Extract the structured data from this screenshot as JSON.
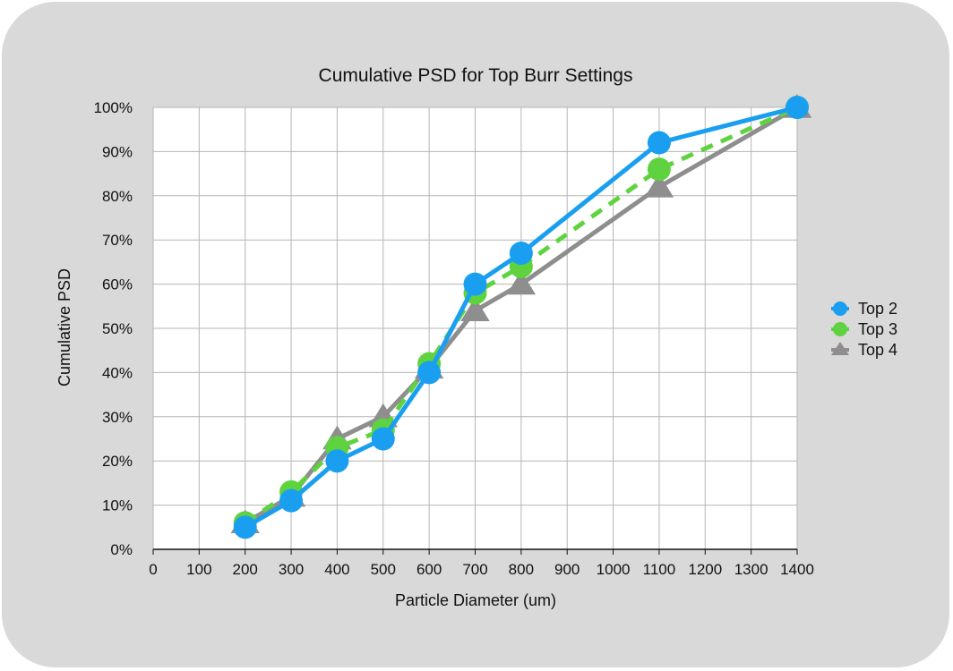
{
  "chart_data": {
    "type": "line",
    "title": "Cumulative PSD for Top Burr Settings",
    "xlabel": "Particle Diameter (um)",
    "ylabel": "Cumulative PSD",
    "xlim": [
      0,
      1400
    ],
    "ylim": [
      0,
      1
    ],
    "x_ticks": [
      0,
      100,
      200,
      300,
      400,
      500,
      600,
      700,
      800,
      900,
      1000,
      1100,
      1200,
      1300,
      1400
    ],
    "y_ticks": [
      0,
      0.1,
      0.2,
      0.3,
      0.4,
      0.5,
      0.6,
      0.7,
      0.8,
      0.9,
      1.0
    ],
    "y_tick_labels": [
      "0%",
      "10%",
      "20%",
      "30%",
      "40%",
      "50%",
      "60%",
      "70%",
      "80%",
      "90%",
      "100%"
    ],
    "grid": true,
    "legend_position": "right",
    "x": [
      200,
      300,
      400,
      500,
      600,
      700,
      800,
      1100,
      1400
    ],
    "series": [
      {
        "name": "Top 2",
        "color": "#1a9ff0",
        "marker": "circle",
        "dash": false,
        "values": [
          0.05,
          0.11,
          0.2,
          0.25,
          0.4,
          0.6,
          0.67,
          0.92,
          1.0
        ]
      },
      {
        "name": "Top 3",
        "color": "#5fd33f",
        "marker": "circle",
        "dash": true,
        "values": [
          0.06,
          0.13,
          0.23,
          0.27,
          0.42,
          0.58,
          0.64,
          0.86,
          1.0
        ]
      },
      {
        "name": "Top 4",
        "color": "#8e8e8e",
        "marker": "triangle",
        "dash": false,
        "values": [
          0.06,
          0.12,
          0.25,
          0.3,
          0.41,
          0.54,
          0.6,
          0.82,
          1.0
        ]
      }
    ]
  }
}
